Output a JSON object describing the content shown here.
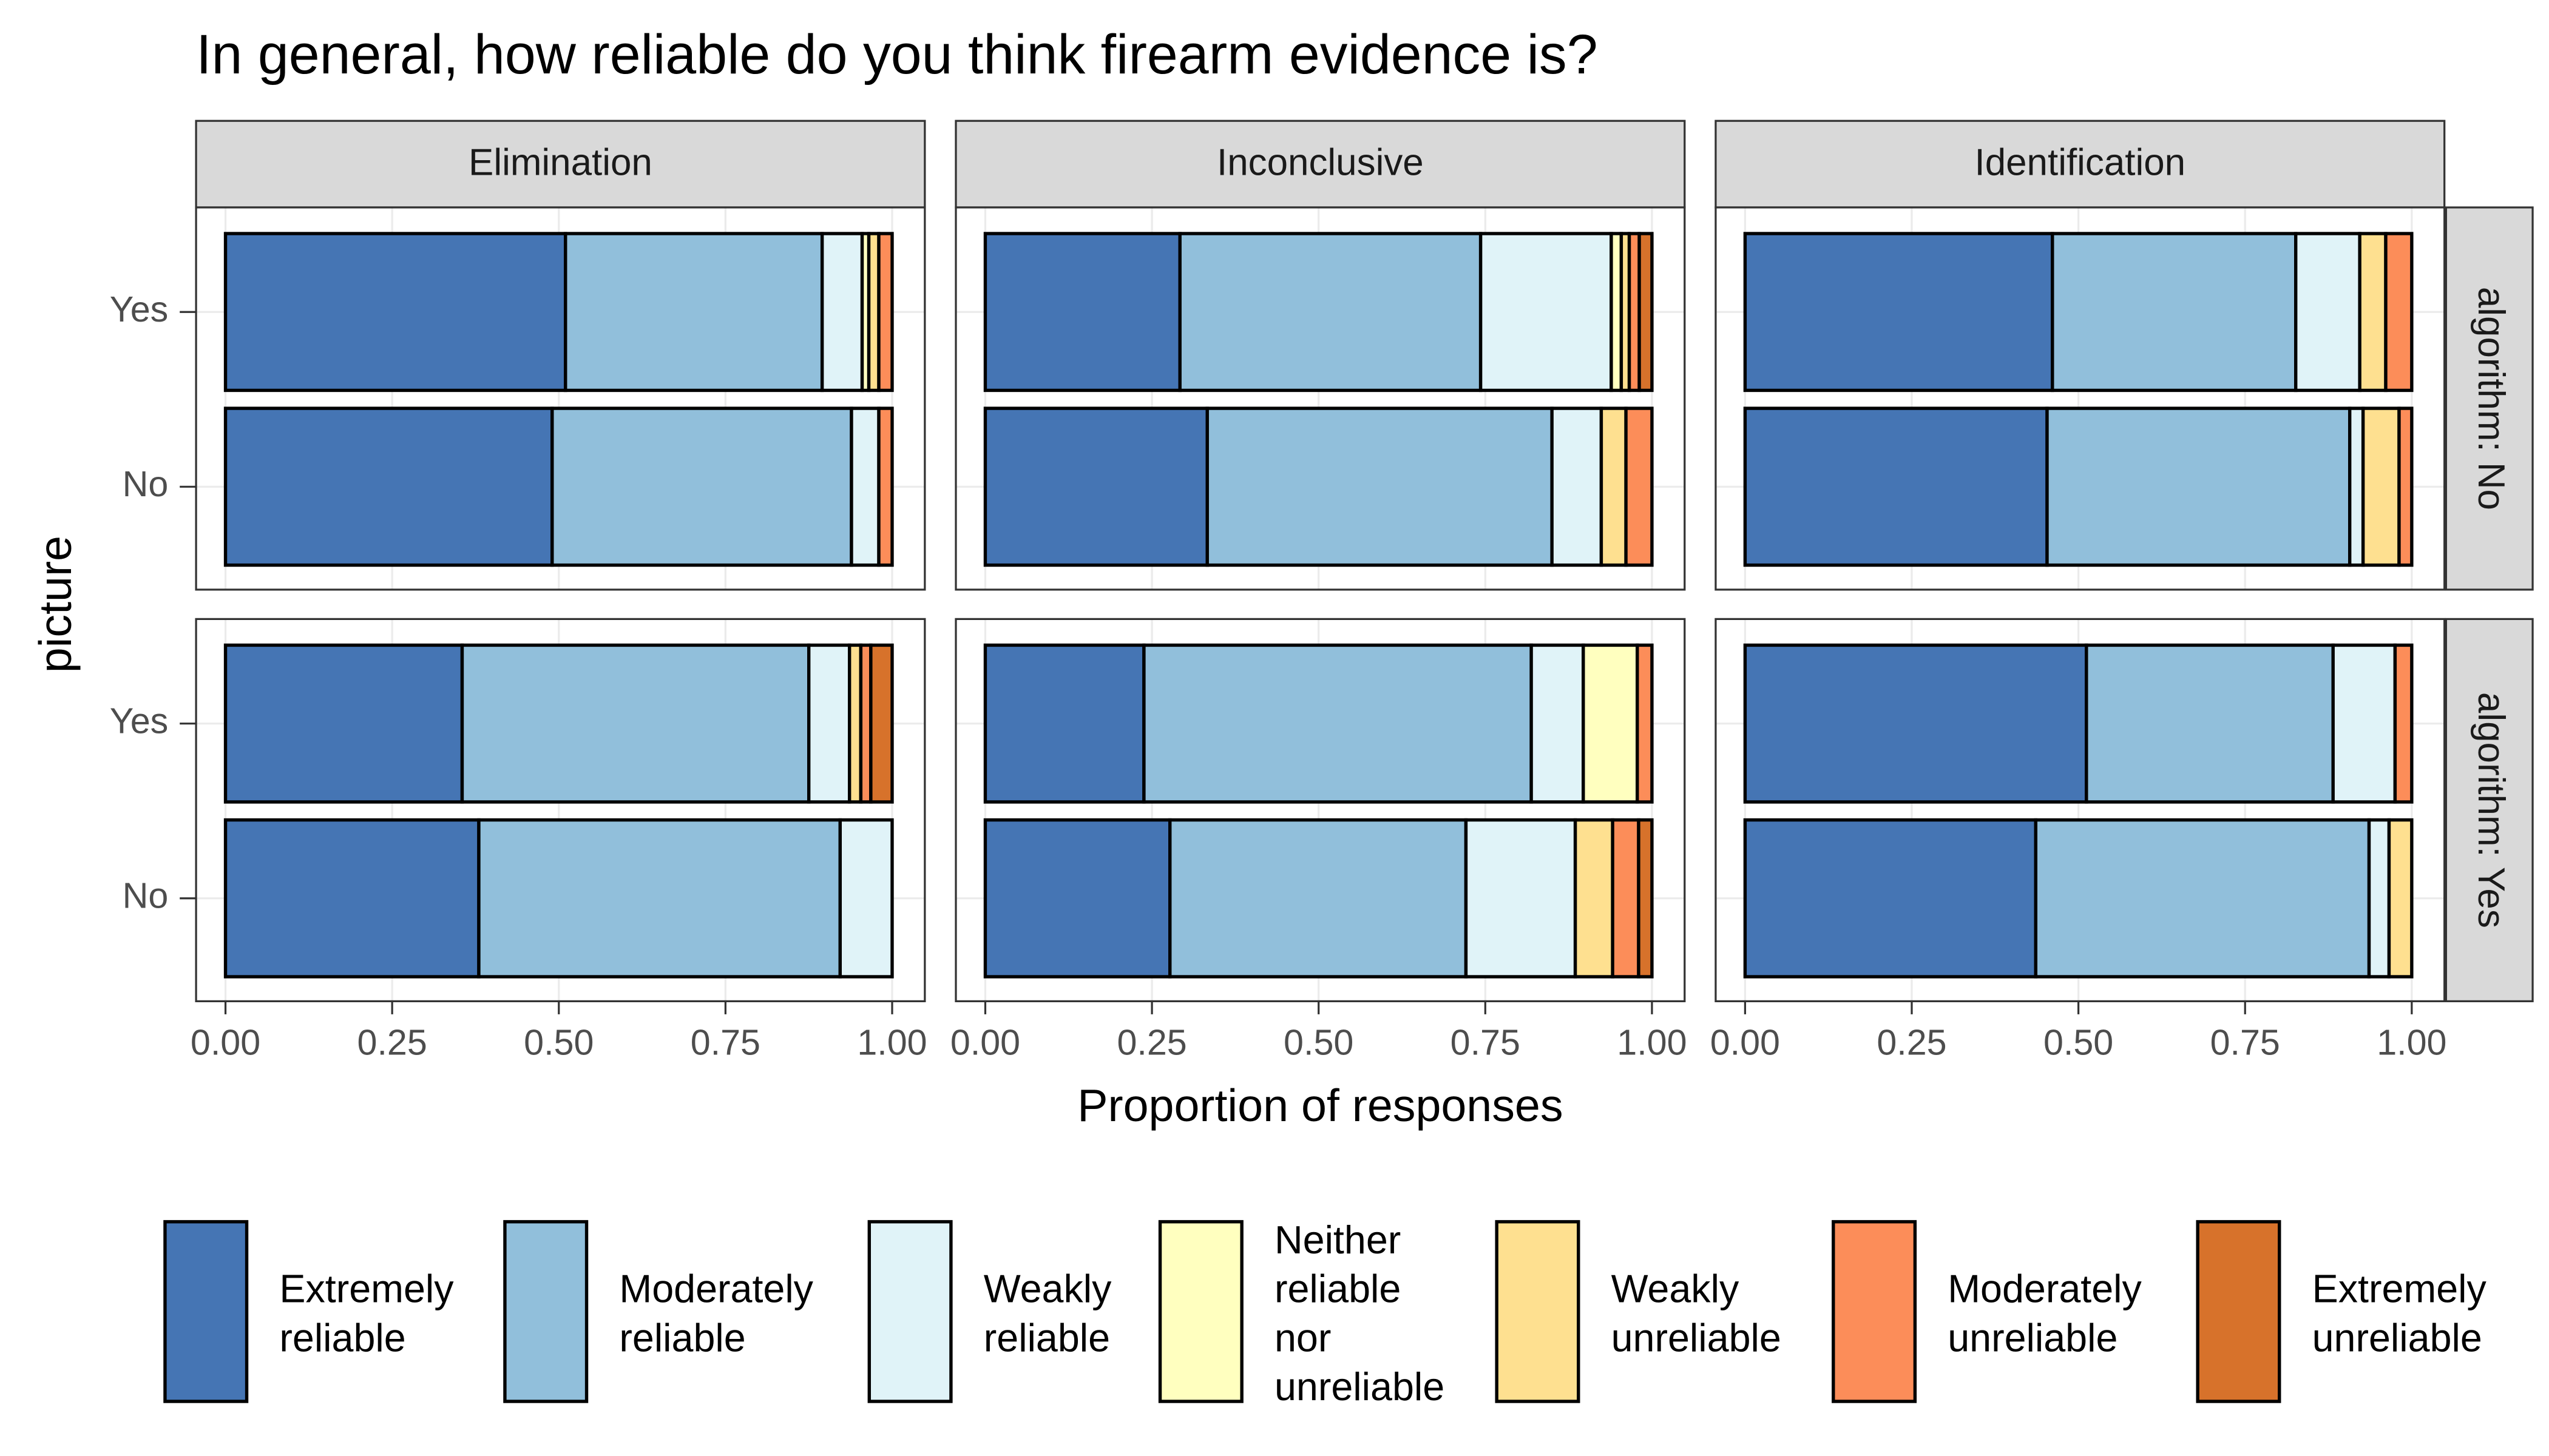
{
  "chart_data": {
    "type": "bar",
    "orientation": "horizontal",
    "stacked": true,
    "title": "In general, how reliable do you think firearm evidence is?",
    "xlabel": "Proportion of responses",
    "ylabel": "picture",
    "facet_cols": [
      "Elimination",
      "Inconclusive",
      "Identification"
    ],
    "facet_rows": [
      "algorithm: No",
      "algorithm: Yes"
    ],
    "categories": [
      "Yes",
      "No"
    ],
    "xlim": [
      0,
      1
    ],
    "xticks": [
      {
        "value": 0,
        "label": "0.00"
      },
      {
        "value": 0.25,
        "label": "0.25"
      },
      {
        "value": 0.5,
        "label": "0.50"
      },
      {
        "value": 0.75,
        "label": "0.75"
      },
      {
        "value": 1,
        "label": "1.00"
      }
    ],
    "grid": true,
    "legend": "bottom",
    "series": [
      {
        "name": "Extremely reliable",
        "color": "#4575b4",
        "values": [
          [
            [
              0.51,
              0.49
            ],
            [
              0.292,
              0.333
            ],
            [
              0.461,
              0.453
            ]
          ],
          [
            [
              0.355,
              0.38
            ],
            [
              0.238,
              0.277
            ],
            [
              0.512,
              0.436
            ]
          ]
        ]
      },
      {
        "name": "Moderately reliable",
        "color": "#91bfdb",
        "values": [
          [
            [
              0.385,
              0.449
            ],
            [
              0.451,
              0.517
            ],
            [
              0.365,
              0.454
            ]
          ],
          [
            [
              0.52,
              0.542
            ],
            [
              0.581,
              0.444
            ],
            [
              0.37,
              0.5
            ]
          ]
        ]
      },
      {
        "name": "Weakly reliable",
        "color": "#e0f3f8",
        "values": [
          [
            [
              0.06,
              0.041
            ],
            [
              0.196,
              0.074
            ],
            [
              0.096,
              0.02
            ]
          ],
          [
            [
              0.061,
              0.078
            ],
            [
              0.078,
              0.164
            ],
            [
              0.093,
              0.03
            ]
          ]
        ]
      },
      {
        "name": "Neither reliable nor unreliable",
        "color": "#ffffbf",
        "values": [
          [
            [
              0.01,
              0
            ],
            [
              0.015,
              0
            ],
            [
              0,
              0
            ]
          ],
          [
            [
              0,
              0
            ],
            [
              0.081,
              0
            ],
            [
              0,
              0
            ]
          ]
        ]
      },
      {
        "name": "Weakly unreliable",
        "color": "#fee090",
        "values": [
          [
            [
              0.015,
              0
            ],
            [
              0.012,
              0.037
            ],
            [
              0.039,
              0.054
            ]
          ],
          [
            [
              0.017,
              0
            ],
            [
              0,
              0.056
            ],
            [
              0,
              0.034
            ]
          ]
        ]
      },
      {
        "name": "Moderately unreliable",
        "color": "#fc8d59",
        "values": [
          [
            [
              0.02,
              0.02
            ],
            [
              0.015,
              0.039
            ],
            [
              0.039,
              0.019
            ]
          ],
          [
            [
              0.015,
              0
            ],
            [
              0.022,
              0.039
            ],
            [
              0.025,
              0
            ]
          ]
        ]
      },
      {
        "name": "Extremely unreliable",
        "color": "#d7722b",
        "values": [
          [
            [
              0,
              0
            ],
            [
              0.019,
              0
            ],
            [
              0,
              0
            ]
          ],
          [
            [
              0.032,
              0
            ],
            [
              0,
              0.02
            ],
            [
              0,
              0
            ]
          ]
        ]
      }
    ]
  }
}
